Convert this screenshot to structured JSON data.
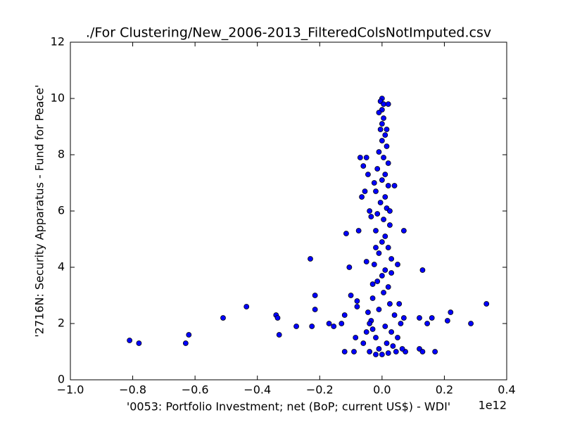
{
  "chart_data": {
    "type": "scatter",
    "title": "./For Clustering/New_2006-2013_FilteredColsNotImputed.csv",
    "x_label": "'0053: Portfolio Investment; net  (BoP; current US$) - WDI'",
    "y_label": "'2716N: Security Apparatus - Fund for Peace'",
    "x_offset_label": "1e12",
    "color": "#0000ff",
    "xlim": [
      -1.0,
      0.4
    ],
    "ylim": [
      0,
      12
    ],
    "xticks": [
      {
        "value": -1.0,
        "label": "−1.0"
      },
      {
        "value": -0.8,
        "label": "−0.8"
      },
      {
        "value": -0.6,
        "label": "−0.6"
      },
      {
        "value": -0.4,
        "label": "−0.4"
      },
      {
        "value": -0.2,
        "label": "−0.2"
      },
      {
        "value": 0.0,
        "label": "0.0"
      },
      0.2,
      0.4
    ],
    "yticks": [
      0,
      2,
      4,
      6,
      8,
      10,
      12
    ],
    "x": [
      -0.81,
      -0.78,
      -0.63,
      -0.62,
      -0.51,
      -0.435,
      -0.34,
      -0.335,
      -0.33,
      -0.275,
      -0.23,
      -0.225,
      -0.215,
      -0.215,
      -0.17,
      -0.155,
      -0.13,
      -0.12,
      -0.115,
      -0.105,
      -0.1,
      -0.09,
      -0.085,
      -0.08,
      -0.08,
      -0.075,
      -0.07,
      -0.065,
      -0.06,
      -0.055,
      -0.05,
      -0.05,
      -0.045,
      -0.04,
      -0.035,
      -0.03,
      0.07,
      0.04,
      0.05,
      0.055,
      0.06,
      0.07,
      0.12,
      0.13,
      0.145,
      0.16,
      0.12,
      0.13,
      0.17,
      0.21,
      0.22,
      0.285,
      0.335,
      0.075,
      0.065,
      -0.12,
      -0.06,
      -0.05,
      -0.04,
      -0.02,
      0.0,
      -0.005,
      0.005,
      0.0,
      -0.01,
      0.005,
      0.0,
      -0.005,
      0.01,
      0.0,
      0.015,
      -0.01,
      0.005,
      0.02,
      -0.015,
      0.01,
      0.0,
      0.02,
      -0.02,
      0.01,
      -0.005,
      0.015,
      -0.015,
      0.005,
      0.025,
      -0.02,
      0.01,
      0.0,
      0.02,
      -0.01,
      0.03,
      -0.025,
      0.01,
      0.0,
      -0.015,
      0.02,
      0.005,
      -0.03,
      0.025,
      -0.01,
      0.04,
      -0.035,
      0.01,
      0.03,
      -0.02,
      0.015,
      -0.01,
      0.02,
      0.0,
      -0.04,
      0.035,
      -0.03,
      0.045,
      0.05,
      -0.045,
      0.03,
      -0.02,
      0.025,
      -0.025,
      0.015,
      0.02
    ],
    "values": [
      1.4,
      1.3,
      1.3,
      1.6,
      2.2,
      2.6,
      2.3,
      2.2,
      1.6,
      1.9,
      4.3,
      1.9,
      3.0,
      2.5,
      2.0,
      1.9,
      2.0,
      2.3,
      5.2,
      4.0,
      3.0,
      1.0,
      1.5,
      2.8,
      2.6,
      5.3,
      7.9,
      6.5,
      7.6,
      6.7,
      4.2,
      7.9,
      7.3,
      6.0,
      5.8,
      3.4,
      5.3,
      6.9,
      4.1,
      2.7,
      2.0,
      2.2,
      2.2,
      3.9,
      2.0,
      2.2,
      1.1,
      1.0,
      1.0,
      2.1,
      2.4,
      2.0,
      2.7,
      1.0,
      1.1,
      1.0,
      1.3,
      1.7,
      1.0,
      0.9,
      10.0,
      9.9,
      9.8,
      9.6,
      9.5,
      9.3,
      9.1,
      8.9,
      8.7,
      8.5,
      8.3,
      8.1,
      7.9,
      7.7,
      7.5,
      7.3,
      7.1,
      6.9,
      6.7,
      6.5,
      6.3,
      6.1,
      5.9,
      5.7,
      5.5,
      5.3,
      5.1,
      4.9,
      4.7,
      4.5,
      4.3,
      4.1,
      3.9,
      3.7,
      3.5,
      3.3,
      3.1,
      2.9,
      2.7,
      2.5,
      2.3,
      2.1,
      1.9,
      1.7,
      1.5,
      1.3,
      1.1,
      0.95,
      0.9,
      2.0,
      1.2,
      1.8,
      1.0,
      1.5,
      2.4,
      3.8,
      4.7,
      6.0,
      7.0,
      8.9,
      9.8
    ]
  }
}
